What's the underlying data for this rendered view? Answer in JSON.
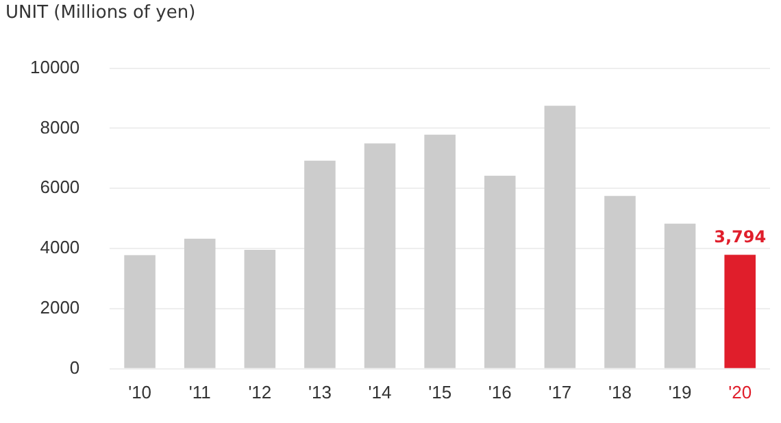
{
  "chart_data": {
    "type": "bar",
    "ylabel": "UNIT (Millions of yen)",
    "categories": [
      "'10",
      "'11",
      "'12",
      "'13",
      "'14",
      "'15",
      "'16",
      "'17",
      "'18",
      "'19",
      "'20"
    ],
    "values": [
      3780,
      4330,
      3960,
      6920,
      7500,
      7790,
      6420,
      8750,
      5750,
      4830,
      3794
    ],
    "colors": [
      "#cccccc",
      "#cccccc",
      "#cccccc",
      "#cccccc",
      "#cccccc",
      "#cccccc",
      "#cccccc",
      "#cccccc",
      "#cccccc",
      "#cccccc",
      "#e01e2b"
    ],
    "value_labels": [
      null,
      null,
      null,
      null,
      null,
      null,
      null,
      null,
      null,
      null,
      "3,794"
    ],
    "ylim": [
      0,
      10000
    ],
    "yticks": [
      0,
      2000,
      4000,
      6000,
      8000,
      10000
    ],
    "grid": "y",
    "legend": false
  }
}
